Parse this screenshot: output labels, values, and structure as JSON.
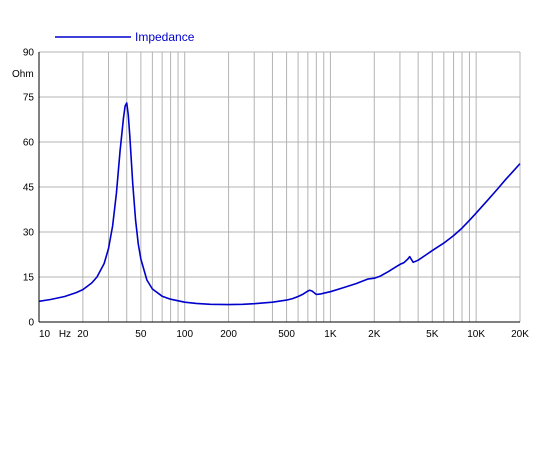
{
  "chart_data": {
    "type": "line",
    "title": "",
    "xlabel": "Hz",
    "ylabel": "Ohm",
    "x_scale": "log",
    "xlim": [
      10,
      20000
    ],
    "ylim": [
      0,
      90
    ],
    "grid": true,
    "legend_placement": "top-left",
    "colors": {
      "series": "#0000cc",
      "grid": "#b4b4b4",
      "axis": "#000000"
    },
    "x_ticks": [
      {
        "value": 10,
        "label": "10"
      },
      {
        "value": 20,
        "label": "20"
      },
      {
        "value": 50,
        "label": "50"
      },
      {
        "value": 100,
        "label": "100"
      },
      {
        "value": 200,
        "label": "200"
      },
      {
        "value": 500,
        "label": "500"
      },
      {
        "value": 1000,
        "label": "1K"
      },
      {
        "value": 2000,
        "label": "2K"
      },
      {
        "value": 5000,
        "label": "5K"
      },
      {
        "value": 10000,
        "label": "10K"
      },
      {
        "value": 20000,
        "label": "20K"
      }
    ],
    "y_ticks": [
      {
        "value": 0,
        "label": "0"
      },
      {
        "value": 15,
        "label": "15"
      },
      {
        "value": 30,
        "label": "30"
      },
      {
        "value": 45,
        "label": "45"
      },
      {
        "value": 60,
        "label": "60"
      },
      {
        "value": 75,
        "label": "75"
      },
      {
        "value": 90,
        "label": "90"
      }
    ],
    "series": [
      {
        "name": "Impedance",
        "x": [
          10,
          12,
          15,
          18,
          20,
          23,
          25,
          28,
          30,
          32,
          34,
          36,
          38,
          39,
          40,
          41,
          42,
          44,
          46,
          48,
          50,
          55,
          60,
          70,
          80,
          100,
          120,
          150,
          200,
          250,
          300,
          400,
          500,
          550,
          600,
          650,
          700,
          720,
          750,
          780,
          800,
          850,
          900,
          1000,
          1200,
          1500,
          1800,
          2000,
          2200,
          2500,
          2800,
          3000,
          3200,
          3400,
          3500,
          3600,
          3700,
          4000,
          4500,
          5000,
          6000,
          7000,
          8000,
          9000,
          10000,
          12000,
          14000,
          16000,
          18000,
          20000
        ],
        "y": [
          6.9,
          7.5,
          8.5,
          9.8,
          10.8,
          13.0,
          15.0,
          19.5,
          24.5,
          32.0,
          43.0,
          57.0,
          68.0,
          72.0,
          73.0,
          69.0,
          62.0,
          46.0,
          34.0,
          26.0,
          21.0,
          14.0,
          11.0,
          8.6,
          7.6,
          6.6,
          6.2,
          5.9,
          5.8,
          5.9,
          6.1,
          6.6,
          7.3,
          7.8,
          8.5,
          9.3,
          10.3,
          10.6,
          10.3,
          9.6,
          9.2,
          9.3,
          9.6,
          10.1,
          11.3,
          12.8,
          14.3,
          14.6,
          15.3,
          16.8,
          18.3,
          19.2,
          19.8,
          21.0,
          21.8,
          20.8,
          19.9,
          20.6,
          22.3,
          23.8,
          26.3,
          28.8,
          31.3,
          33.9,
          36.3,
          40.6,
          44.3,
          47.6,
          50.3,
          52.8
        ]
      }
    ]
  }
}
